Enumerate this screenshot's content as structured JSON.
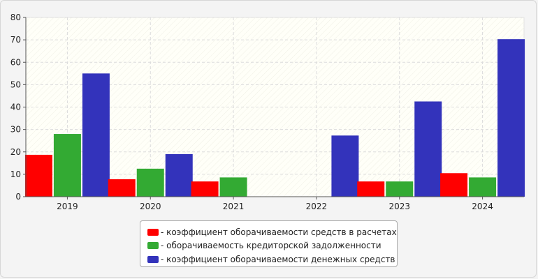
{
  "chart_data": {
    "type": "bar",
    "categories": [
      "2019",
      "2020",
      "2021",
      "2022",
      "2023",
      "2024"
    ],
    "series": [
      {
        "name": "коэффициент оборачиваемости средств в расчетах",
        "values": [
          18.7,
          7.8,
          6.8,
          0,
          6.8,
          10.5
        ],
        "color": "#ff0000"
      },
      {
        "name": "оборачиваемость кредиторской задолженности",
        "values": [
          28,
          12.5,
          8.6,
          0,
          6.8,
          8.6
        ],
        "color": "#33aa33"
      },
      {
        "name": "коэффициент оборачиваемости денежных средств",
        "values": [
          55,
          19,
          0,
          27.3,
          42.5,
          70.3
        ],
        "color": "#3333bb"
      }
    ],
    "ylim": [
      0,
      80
    ],
    "yticks": [
      "0",
      "10",
      "20",
      "30",
      "40",
      "50",
      "60",
      "70",
      "80"
    ],
    "grid": true,
    "legend_position": "bottom"
  },
  "legend": {
    "items": [
      {
        "label": "- коэффициент оборачиваемости средств в расчетах",
        "color": "#ff0000"
      },
      {
        "label": "- оборачиваемость кредиторской задолженности",
        "color": "#33aa33"
      },
      {
        "label": "- коэффициент оборачиваемости денежных средств",
        "color": "#3333bb"
      }
    ]
  },
  "colors": {
    "plot_background": "#fffff8",
    "grid": "#dcdcdc",
    "axis": "#555555"
  }
}
